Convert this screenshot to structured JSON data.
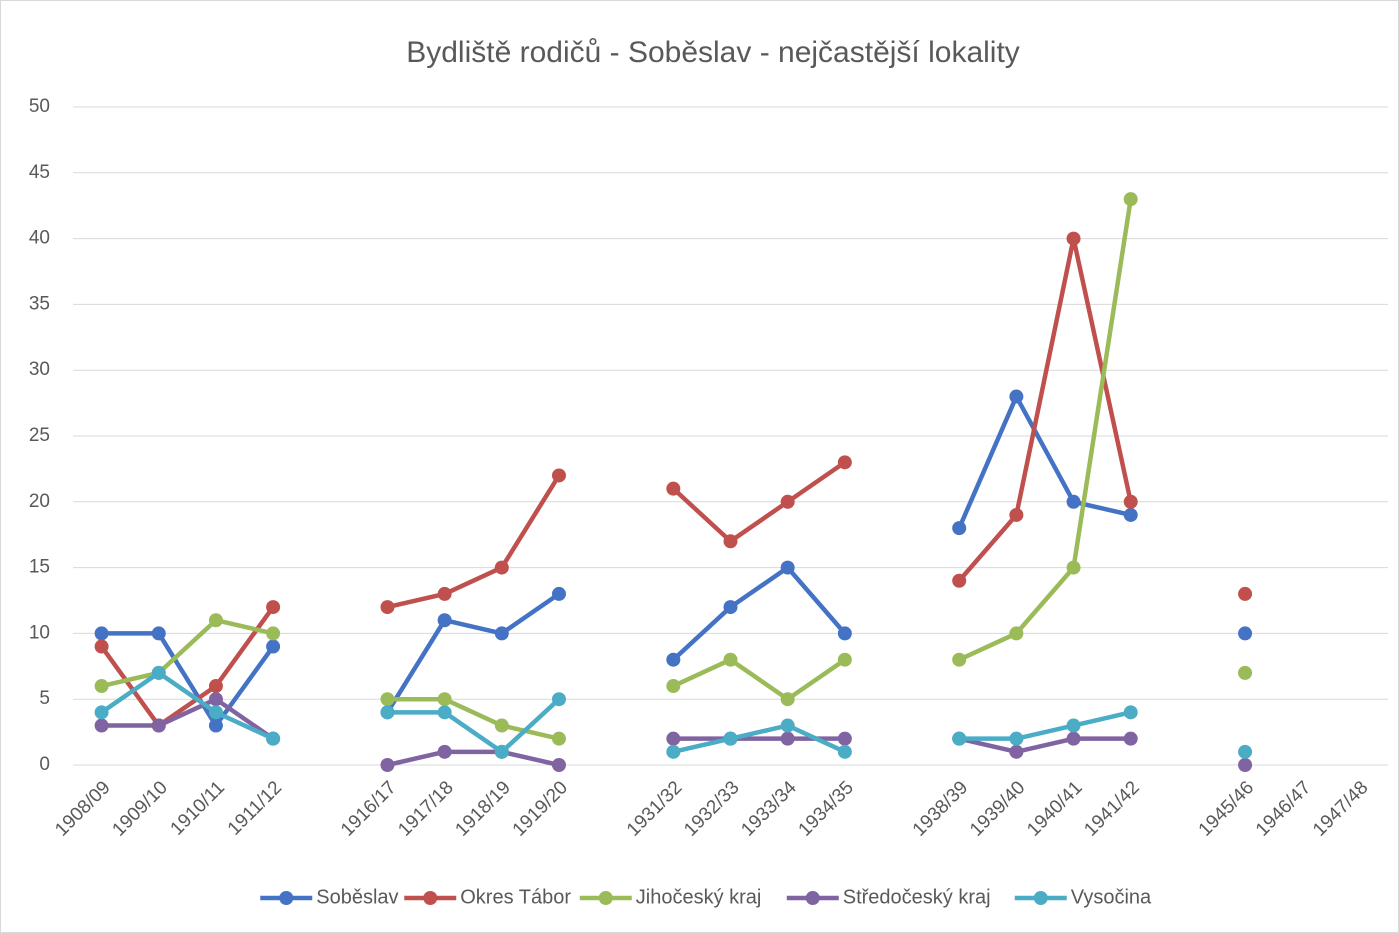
{
  "chart_data": {
    "type": "line",
    "title": "Bydliště rodičů - Soběslav - nejčastější lokality",
    "categories": [
      "1908/09",
      "1909/10",
      "1910/11",
      "1911/12",
      null,
      "1916/17",
      "1917/18",
      "1918/19",
      "1919/20",
      null,
      "1931/32",
      "1932/33",
      "1933/34",
      "1934/35",
      null,
      "1938/39",
      "1939/40",
      "1940/41",
      "1941/42",
      null,
      "1945/46",
      "1946/47",
      "1947/48"
    ],
    "series": [
      {
        "name": "Soběslav",
        "color": "#4472c4",
        "values": [
          10,
          10,
          3,
          9,
          null,
          4,
          11,
          10,
          13,
          null,
          8,
          12,
          15,
          10,
          null,
          18,
          28,
          20,
          19,
          null,
          10,
          null,
          null
        ]
      },
      {
        "name": "Okres Tábor",
        "color": "#c0504d",
        "values": [
          9,
          3,
          6,
          12,
          null,
          12,
          13,
          15,
          22,
          null,
          21,
          17,
          20,
          23,
          null,
          14,
          19,
          40,
          20,
          null,
          13,
          null,
          null
        ]
      },
      {
        "name": "Jihočeský kraj",
        "color": "#9bbb59",
        "values": [
          6,
          7,
          11,
          10,
          null,
          5,
          5,
          3,
          2,
          null,
          6,
          8,
          5,
          8,
          null,
          8,
          10,
          15,
          43,
          null,
          7,
          null,
          null
        ]
      },
      {
        "name": "Středočeský kraj",
        "color": "#8064a2",
        "values": [
          3,
          3,
          5,
          2,
          null,
          0,
          1,
          1,
          0,
          null,
          2,
          2,
          2,
          2,
          null,
          2,
          1,
          2,
          2,
          null,
          0,
          null,
          null
        ]
      },
      {
        "name": "Vysočina",
        "color": "#4bacc6",
        "values": [
          4,
          7,
          4,
          2,
          null,
          4,
          4,
          1,
          5,
          null,
          1,
          2,
          3,
          1,
          null,
          2,
          2,
          3,
          4,
          null,
          1,
          null,
          null
        ]
      }
    ],
    "ylim": [
      0,
      50
    ],
    "yticks": [
      0,
      5,
      10,
      15,
      20,
      25,
      30,
      35,
      40,
      45,
      50
    ],
    "grid": true,
    "legend": "bottom"
  }
}
